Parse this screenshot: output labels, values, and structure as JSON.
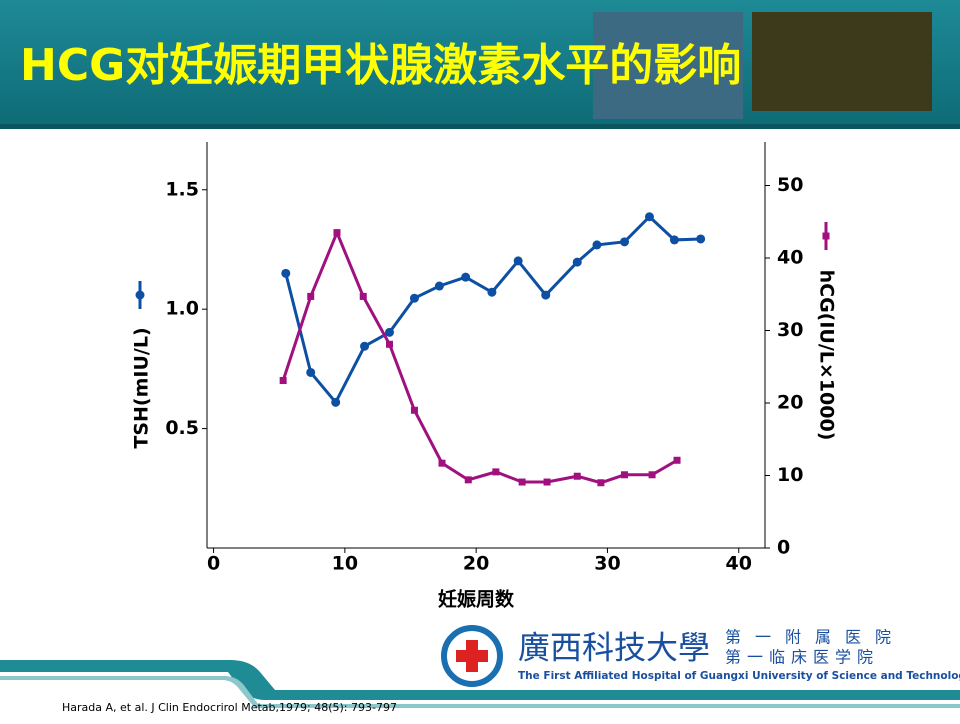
{
  "slide": {
    "title": "HCG对妊娠期甲状腺激素水平的影响",
    "citation": "Harada A, et al.  J Clin Endocrirol Metab,1979; 48(5): 793-797",
    "logo": {
      "name": "廣西科技大學",
      "line1": "第一附属医院",
      "line2": "第一临床医学院",
      "english": "The First Affiliated Hospital of Guangxi University of Science and Technology"
    }
  },
  "chart_data": {
    "type": "line",
    "x_label": "妊娠周数",
    "y_label": "TSH(mIU/L)",
    "y2_label": "hCG(IU/L×1000)",
    "xlim": [
      -0.5,
      42
    ],
    "xticks": [
      0,
      10,
      20,
      30,
      40
    ],
    "ylim": [
      0,
      1.7
    ],
    "yticks": [
      0.5,
      {
        "value": 1,
        "label": "1.0"
      },
      1.5
    ],
    "y2lim": [
      0,
      56
    ],
    "y2ticks": [
      0,
      10,
      20,
      30,
      40,
      50
    ],
    "series": [
      {
        "color": "#0d4fa3",
        "marker": "circle",
        "x": [
          5.5,
          7.4,
          9.3,
          11.5,
          13.4,
          15.3,
          17.2,
          19.2,
          21.2,
          23.2,
          25.3,
          27.7,
          29.2,
          31.3,
          33.2,
          35.1,
          37.1
        ],
        "values": [
          1.15,
          0.735,
          0.61,
          0.845,
          0.903,
          1.046,
          1.097,
          1.134,
          1.071,
          1.202,
          1.059,
          1.197,
          1.269,
          1.282,
          1.387,
          1.29,
          1.294
        ]
      },
      {
        "color": "#a0117f",
        "marker": "square",
        "axis": "y2",
        "x": [
          5.3,
          7.4,
          9.4,
          11.4,
          13.4,
          15.3,
          17.4,
          19.4,
          21.5,
          23.5,
          25.4,
          27.7,
          29.5,
          31.3,
          33.4,
          35.3
        ],
        "values": [
          23.1,
          34.7,
          43.5,
          34.7,
          28.1,
          19.0,
          11.7,
          9.4,
          10.5,
          9.1,
          9.1,
          9.9,
          9.0,
          10.1,
          10.1,
          12.1
        ]
      }
    ]
  }
}
